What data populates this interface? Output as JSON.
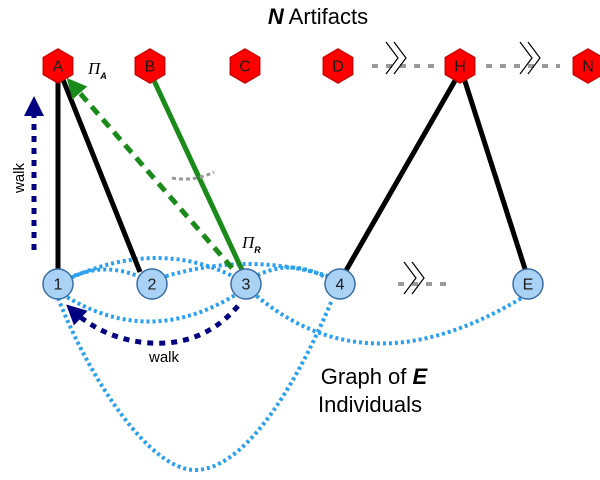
{
  "title": {
    "bold_part": "N",
    "rest": " Artifacts"
  },
  "caption": {
    "line1_prefix": "Graph of ",
    "line1_bold": "E",
    "line2": "Individuals"
  },
  "artifacts": [
    "A",
    "B",
    "C",
    "D",
    "H",
    "N"
  ],
  "individuals": [
    "1",
    "2",
    "3",
    "4",
    "E"
  ],
  "labels": {
    "walk_vertical": "walk",
    "walk_bottom": "walk",
    "pi_a_main": "Π",
    "pi_a_sub": "A",
    "pi_r_main": "Π",
    "pi_r_sub": "R"
  },
  "colors": {
    "artifact_fill": "#ff0000",
    "artifact_stroke": "#cc0000",
    "individual_fill": "#a9d2f5",
    "individual_stroke": "#3a6ea5",
    "black_edge": "#000000",
    "green_edge": "#1a8a1a",
    "blue_dotted": "#2aa0ee",
    "walk_arrow": "#000080",
    "break_gray": "#9a9a9a"
  },
  "icons": {
    "break_marker": "double-slash-break-icon"
  }
}
